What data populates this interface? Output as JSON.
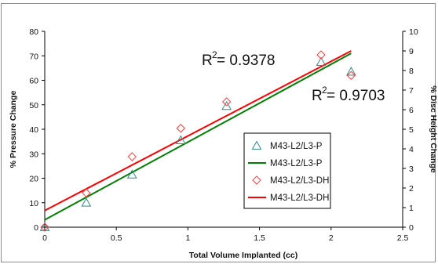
{
  "chart_data": {
    "type": "scatter",
    "title": "",
    "xlabel": "Total Volume Implanted (cc)",
    "ylabel": "% Pressure Change",
    "y2label": "% Disc Height Change",
    "xlim": [
      0,
      2.5
    ],
    "ylim": [
      0,
      80
    ],
    "y2lim": [
      0,
      10
    ],
    "x_ticks": [
      "0",
      "0.5",
      "1",
      "1.5",
      "2",
      "2.5"
    ],
    "y_ticks": [
      "0",
      "10",
      "20",
      "30",
      "40",
      "50",
      "60",
      "70",
      "80"
    ],
    "y2_ticks": [
      "0",
      "1",
      "2",
      "3",
      "4",
      "5",
      "6",
      "7",
      "8",
      "9",
      "10"
    ],
    "grid": false,
    "legend_position": "center-right",
    "series": [
      {
        "name": "M43-L2/L3-P",
        "kind": "points",
        "marker": "triangle",
        "color": "#2e8b8b",
        "axis": "left",
        "x": [
          0,
          0.29,
          0.61,
          0.95,
          1.27,
          1.93,
          2.14
        ],
        "y": [
          0,
          10,
          21.5,
          35.5,
          49.5,
          67.5,
          63.5
        ]
      },
      {
        "name": "M43-L2/L3-P",
        "kind": "trendline",
        "color": "#008000",
        "axis": "left",
        "x": [
          0,
          2.14
        ],
        "y": [
          3,
          71
        ]
      },
      {
        "name": "M43-L2/L3-DH",
        "kind": "points",
        "marker": "diamond",
        "color": "#ff4040",
        "axis": "right",
        "x": [
          0,
          0.29,
          0.61,
          0.95,
          1.27,
          1.93,
          2.14
        ],
        "y": [
          0,
          1.75,
          3.6,
          5.05,
          6.4,
          8.8,
          7.75
        ]
      },
      {
        "name": "M43-L2/L3-DH",
        "kind": "trendline",
        "color": "#ff0000",
        "axis": "right",
        "x": [
          0,
          2.14
        ],
        "y": [
          0.85,
          9.0
        ]
      }
    ],
    "annotations": [
      {
        "base": "R",
        "sup": "2",
        "rest": " = 0.9378"
      },
      {
        "base": "R",
        "sup": "2",
        "rest": " = 0.9703"
      }
    ]
  }
}
